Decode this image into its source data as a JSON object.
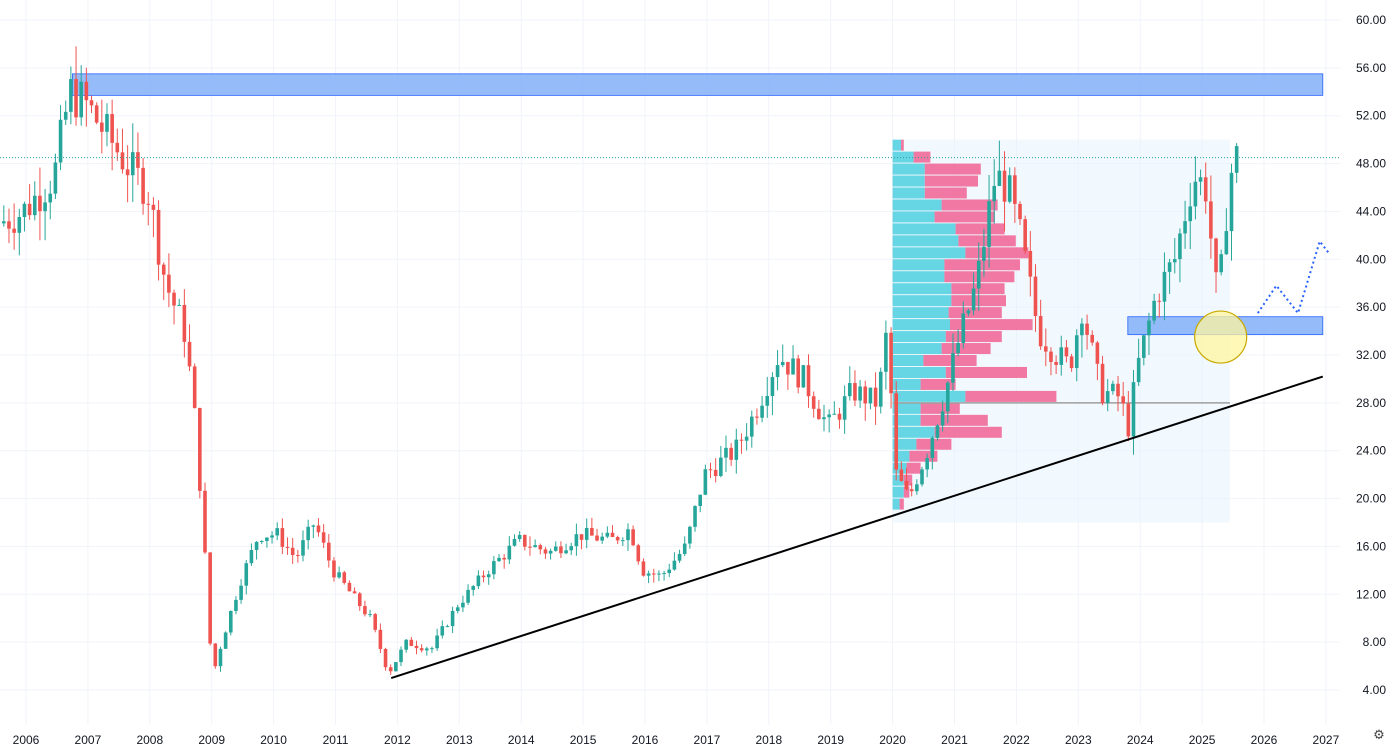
{
  "chart_data": {
    "type": "candlestick",
    "title": "",
    "xlabel": "",
    "ylabel": "",
    "ylim": [
      2,
      61
    ],
    "xlim": [
      2005.6,
      2027.2
    ],
    "grid": true,
    "y_ticks": [
      "4.00",
      "8.00",
      "12.00",
      "16.00",
      "20.00",
      "24.00",
      "28.00",
      "32.00",
      "36.00",
      "40.00",
      "44.00",
      "48.00",
      "52.00",
      "56.00",
      "60.00"
    ],
    "x_ticks": [
      "2006",
      "2007",
      "2008",
      "2009",
      "2010",
      "2011",
      "2012",
      "2013",
      "2014",
      "2015",
      "2016",
      "2017",
      "2018",
      "2019",
      "2020",
      "2021",
      "2022",
      "2023",
      "2024",
      "2025",
      "2026",
      "2027"
    ],
    "colors": {
      "up": "#26a69a",
      "down": "#ef5350",
      "zone": "#8ab4f8",
      "zone_border": "#2962ff",
      "circle": "#fff59d",
      "trendline": "#000000",
      "dashed": "#2962ff",
      "profile_up": "#4dd0e1",
      "profile_down": "#f06292",
      "range_bg": "#e3f2fd"
    },
    "key_points": [
      {
        "t": 2005.6,
        "v": 43
      },
      {
        "t": 2006.0,
        "v": 44
      },
      {
        "t": 2006.5,
        "v": 47
      },
      {
        "t": 2006.75,
        "v": 54
      },
      {
        "t": 2007.0,
        "v": 53
      },
      {
        "t": 2007.4,
        "v": 50
      },
      {
        "t": 2007.8,
        "v": 47
      },
      {
        "t": 2008.0,
        "v": 46
      },
      {
        "t": 2008.3,
        "v": 38
      },
      {
        "t": 2008.6,
        "v": 34
      },
      {
        "t": 2008.75,
        "v": 28
      },
      {
        "t": 2008.9,
        "v": 18
      },
      {
        "t": 2009.05,
        "v": 5
      },
      {
        "t": 2009.2,
        "v": 8
      },
      {
        "t": 2009.5,
        "v": 13
      },
      {
        "t": 2009.8,
        "v": 17
      },
      {
        "t": 2010.1,
        "v": 17
      },
      {
        "t": 2010.4,
        "v": 15
      },
      {
        "t": 2010.7,
        "v": 18
      },
      {
        "t": 2011.0,
        "v": 14
      },
      {
        "t": 2011.3,
        "v": 12
      },
      {
        "t": 2011.6,
        "v": 10
      },
      {
        "t": 2011.9,
        "v": 5.5
      },
      {
        "t": 2012.2,
        "v": 8
      },
      {
        "t": 2012.6,
        "v": 7.5
      },
      {
        "t": 2013.0,
        "v": 11
      },
      {
        "t": 2013.5,
        "v": 14
      },
      {
        "t": 2014.0,
        "v": 16.5
      },
      {
        "t": 2014.5,
        "v": 15.5
      },
      {
        "t": 2015.0,
        "v": 17
      },
      {
        "t": 2015.5,
        "v": 16.5
      },
      {
        "t": 2015.8,
        "v": 17.5
      },
      {
        "t": 2016.0,
        "v": 14
      },
      {
        "t": 2016.3,
        "v": 13.5
      },
      {
        "t": 2016.7,
        "v": 16
      },
      {
        "t": 2017.0,
        "v": 22
      },
      {
        "t": 2017.5,
        "v": 24
      },
      {
        "t": 2017.8,
        "v": 27
      },
      {
        "t": 2018.2,
        "v": 32
      },
      {
        "t": 2018.6,
        "v": 30
      },
      {
        "t": 2019.0,
        "v": 26
      },
      {
        "t": 2019.4,
        "v": 29
      },
      {
        "t": 2019.8,
        "v": 28
      },
      {
        "t": 2019.95,
        "v": 34
      },
      {
        "t": 2020.1,
        "v": 22
      },
      {
        "t": 2020.3,
        "v": 20
      },
      {
        "t": 2020.6,
        "v": 24
      },
      {
        "t": 2020.9,
        "v": 29
      },
      {
        "t": 2021.1,
        "v": 33
      },
      {
        "t": 2021.4,
        "v": 38
      },
      {
        "t": 2021.7,
        "v": 47
      },
      {
        "t": 2021.9,
        "v": 46
      },
      {
        "t": 2022.1,
        "v": 42
      },
      {
        "t": 2022.4,
        "v": 34
      },
      {
        "t": 2022.7,
        "v": 32
      },
      {
        "t": 2022.9,
        "v": 31
      },
      {
        "t": 2023.1,
        "v": 36
      },
      {
        "t": 2023.4,
        "v": 29
      },
      {
        "t": 2023.7,
        "v": 28.5
      },
      {
        "t": 2023.85,
        "v": 26
      },
      {
        "t": 2024.0,
        "v": 31
      },
      {
        "t": 2024.3,
        "v": 37
      },
      {
        "t": 2024.6,
        "v": 40
      },
      {
        "t": 2024.9,
        "v": 47
      },
      {
        "t": 2025.1,
        "v": 46
      },
      {
        "t": 2025.3,
        "v": 36
      },
      {
        "t": 2025.45,
        "v": 45
      },
      {
        "t": 2025.55,
        "v": 48.5
      }
    ],
    "annotations": {
      "resistance_zone": {
        "t0": 2006.75,
        "t1": 2026.95,
        "v0": 53.7,
        "v1": 55.5
      },
      "support_zone": {
        "t0": 2023.8,
        "t1": 2026.95,
        "v0": 33.7,
        "v1": 35.2
      },
      "trendline": {
        "t0": 2011.9,
        "v0": 5.0,
        "t1": 2026.95,
        "v1": 30.2
      },
      "circle": {
        "t": 2025.3,
        "v": 33.5,
        "r_years": 0.42
      },
      "current_price": 48.5,
      "projection": [
        {
          "t": 2025.9,
          "v": 35.5
        },
        {
          "t": 2026.2,
          "v": 37.8
        },
        {
          "t": 2026.55,
          "v": 35.5
        },
        {
          "t": 2026.9,
          "v": 41.5
        },
        {
          "t": 2027.05,
          "v": 40.5
        }
      ],
      "volume_profile": {
        "t0": 2020.0,
        "t1": 2025.45,
        "v_low": 18,
        "v_high": 50,
        "poc": 28,
        "rows": [
          {
            "price": 49.5,
            "up": 0.06,
            "down": 0.02
          },
          {
            "price": 48.5,
            "up": 0.15,
            "down": 0.12
          },
          {
            "price": 47.5,
            "up": 0.23,
            "down": 0.4
          },
          {
            "price": 46.5,
            "up": 0.23,
            "down": 0.38
          },
          {
            "price": 45.5,
            "up": 0.23,
            "down": 0.3
          },
          {
            "price": 44.5,
            "up": 0.35,
            "down": 0.4
          },
          {
            "price": 43.5,
            "up": 0.3,
            "down": 0.43
          },
          {
            "price": 42.5,
            "up": 0.45,
            "down": 0.35
          },
          {
            "price": 41.5,
            "up": 0.47,
            "down": 0.41
          },
          {
            "price": 40.5,
            "up": 0.52,
            "down": 0.45
          },
          {
            "price": 39.5,
            "up": 0.37,
            "down": 0.54
          },
          {
            "price": 38.5,
            "up": 0.37,
            "down": 0.5
          },
          {
            "price": 37.5,
            "up": 0.42,
            "down": 0.38
          },
          {
            "price": 36.5,
            "up": 0.42,
            "down": 0.39
          },
          {
            "price": 35.5,
            "up": 0.4,
            "down": 0.38
          },
          {
            "price": 34.5,
            "up": 0.41,
            "down": 0.59
          },
          {
            "price": 33.5,
            "up": 0.38,
            "down": 0.4
          },
          {
            "price": 32.5,
            "up": 0.35,
            "down": 0.35
          },
          {
            "price": 31.5,
            "up": 0.22,
            "down": 0.38
          },
          {
            "price": 30.5,
            "up": 0.38,
            "down": 0.58
          },
          {
            "price": 29.5,
            "up": 0.2,
            "down": 0.25
          },
          {
            "price": 28.5,
            "up": 0.52,
            "down": 0.65
          },
          {
            "price": 27.5,
            "up": 0.2,
            "down": 0.28
          },
          {
            "price": 26.5,
            "up": 0.2,
            "down": 0.48
          },
          {
            "price": 25.5,
            "up": 0.3,
            "down": 0.48
          },
          {
            "price": 24.5,
            "up": 0.17,
            "down": 0.25
          },
          {
            "price": 23.5,
            "up": 0.12,
            "down": 0.2
          },
          {
            "price": 22.5,
            "up": 0.1,
            "down": 0.1
          },
          {
            "price": 21.5,
            "up": 0.08,
            "down": 0.06
          },
          {
            "price": 20.5,
            "up": 0.08,
            "down": 0.04
          },
          {
            "price": 19.5,
            "up": 0.05,
            "down": 0.03
          }
        ]
      }
    }
  },
  "ui": {
    "settings_icon": "gear-icon"
  }
}
